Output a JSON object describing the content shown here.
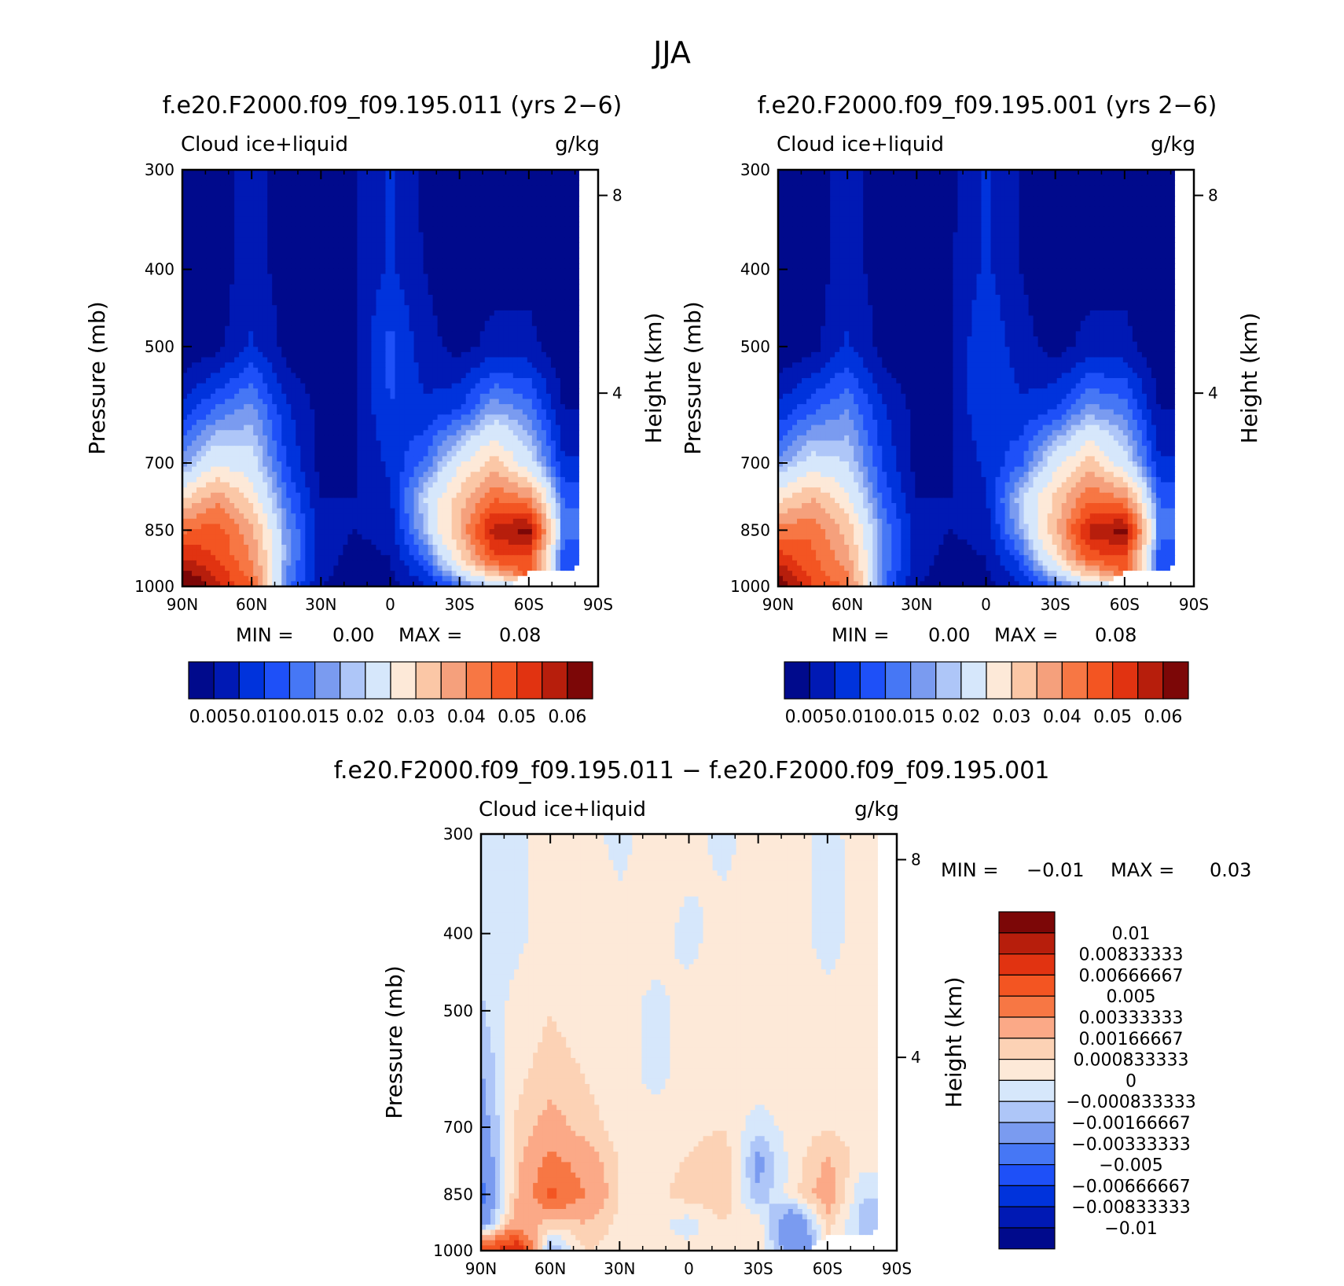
{
  "figure_title": "JJA",
  "colors": {
    "seq": [
      "#000a8c",
      "#0019b4",
      "#0033dc",
      "#1e50f8",
      "#4677f5",
      "#7a9bf0",
      "#aec6f8",
      "#d6e7fb",
      "#fde9d8",
      "#fbc7a6",
      "#f5a07c",
      "#f77744",
      "#f35522",
      "#e13311",
      "#b71e0c",
      "#7c0707"
    ],
    "div": [
      "#7c0707",
      "#b71e0c",
      "#e13311",
      "#f35522",
      "#f77744",
      "#fba987",
      "#fcd2b5",
      "#fde9d8",
      "#d6e7fb",
      "#aec6f8",
      "#7a9bf0",
      "#4677f5",
      "#1e50f8",
      "#0033dc",
      "#0019b4",
      "#000a8c"
    ],
    "missing": "#ffffff"
  },
  "chart_data": [
    {
      "type": "heatmap",
      "id": "panel1",
      "title": "f.e20.F2000.f09_f09.195.011 (yrs 2−6)",
      "left_label": "Cloud ice+liquid",
      "right_label": "g/kg",
      "xlabel": "",
      "ylabel": "Pressure (mb)",
      "y2label": "Height (km)",
      "x_ticks": [
        "90N",
        "60N",
        "30N",
        "0",
        "30S",
        "60S",
        "90S"
      ],
      "y_ticks": [
        "300",
        "400",
        "500",
        "700",
        "850",
        "1000"
      ],
      "y2_ticks": [
        "8",
        "4"
      ],
      "min_label": "MIN =",
      "min_value": "0.00",
      "max_label": "MAX =",
      "max_value": "0.08",
      "colorbar_labels": [
        "0.005",
        "0.010",
        "0.015",
        "0.02",
        "0.03",
        "0.04",
        "0.05",
        "0.06"
      ],
      "field": {
        "latitudes": [
          90,
          75,
          60,
          45,
          30,
          15,
          0,
          -15,
          -30,
          -45,
          -60,
          -75,
          -90
        ],
        "pressures": [
          300,
          400,
          500,
          600,
          700,
          775,
          850,
          925,
          1000
        ],
        "values": [
          [
            0.003,
            0.004,
            0.006,
            0.004,
            0.003,
            0.005,
            0.008,
            0.004,
            0.003,
            0.004,
            0.003,
            0.003,
            null
          ],
          [
            0.003,
            0.004,
            0.006,
            0.004,
            0.003,
            0.005,
            0.008,
            0.005,
            0.003,
            0.004,
            0.004,
            0.003,
            null
          ],
          [
            0.003,
            0.004,
            0.008,
            0.004,
            0.003,
            0.005,
            0.011,
            0.006,
            0.004,
            0.006,
            0.006,
            0.003,
            null
          ],
          [
            0.008,
            0.013,
            0.016,
            0.008,
            0.004,
            0.005,
            0.01,
            0.008,
            0.01,
            0.017,
            0.014,
            0.005,
            null
          ],
          [
            0.016,
            0.024,
            0.022,
            0.01,
            0.004,
            0.005,
            0.008,
            0.013,
            0.024,
            0.032,
            0.022,
            0.008,
            null
          ],
          [
            0.029,
            0.038,
            0.028,
            0.013,
            0.005,
            0.005,
            0.007,
            0.02,
            0.032,
            0.045,
            0.04,
            0.012,
            null
          ],
          [
            0.044,
            0.048,
            0.036,
            0.016,
            0.006,
            0.005,
            0.006,
            0.018,
            0.035,
            0.058,
            0.062,
            0.014,
            null
          ],
          [
            0.056,
            0.05,
            0.04,
            0.016,
            0.006,
            0.004,
            0.005,
            0.012,
            0.028,
            0.048,
            0.048,
            0.01,
            null
          ],
          [
            0.07,
            0.056,
            0.046,
            0.014,
            0.005,
            0.004,
            0.004,
            0.007,
            0.013,
            0.02,
            null,
            null,
            null
          ]
        ]
      }
    },
    {
      "type": "heatmap",
      "id": "panel2",
      "title": "f.e20.F2000.f09_f09.195.001 (yrs 2−6)",
      "left_label": "Cloud ice+liquid",
      "right_label": "g/kg",
      "xlabel": "",
      "ylabel": "Pressure (mb)",
      "y2label": "Height (km)",
      "x_ticks": [
        "90N",
        "60N",
        "30N",
        "0",
        "30S",
        "60S",
        "90S"
      ],
      "y_ticks": [
        "300",
        "400",
        "500",
        "700",
        "850",
        "1000"
      ],
      "y2_ticks": [
        "8",
        "4"
      ],
      "min_label": "MIN =",
      "min_value": "0.00",
      "max_label": "MAX =",
      "max_value": "0.08",
      "colorbar_labels": [
        "0.005",
        "0.010",
        "0.015",
        "0.02",
        "0.03",
        "0.04",
        "0.05",
        "0.06"
      ],
      "field": {
        "latitudes": [
          90,
          75,
          60,
          45,
          30,
          15,
          0,
          -15,
          -30,
          -45,
          -60,
          -75,
          -90
        ],
        "pressures": [
          300,
          400,
          500,
          600,
          700,
          775,
          850,
          925,
          1000
        ],
        "values": [
          [
            0.003,
            0.004,
            0.006,
            0.004,
            0.003,
            0.004,
            0.008,
            0.005,
            0.003,
            0.004,
            0.003,
            0.003,
            null
          ],
          [
            0.003,
            0.004,
            0.006,
            0.004,
            0.003,
            0.005,
            0.008,
            0.005,
            0.003,
            0.004,
            0.004,
            0.003,
            null
          ],
          [
            0.003,
            0.004,
            0.008,
            0.004,
            0.003,
            0.005,
            0.01,
            0.006,
            0.004,
            0.006,
            0.006,
            0.003,
            null
          ],
          [
            0.008,
            0.012,
            0.015,
            0.008,
            0.004,
            0.005,
            0.01,
            0.008,
            0.01,
            0.016,
            0.014,
            0.005,
            null
          ],
          [
            0.016,
            0.022,
            0.02,
            0.01,
            0.004,
            0.005,
            0.008,
            0.012,
            0.023,
            0.032,
            0.022,
            0.008,
            null
          ],
          [
            0.028,
            0.035,
            0.026,
            0.012,
            0.005,
            0.005,
            0.007,
            0.019,
            0.031,
            0.044,
            0.04,
            0.012,
            null
          ],
          [
            0.042,
            0.044,
            0.033,
            0.015,
            0.006,
            0.005,
            0.006,
            0.017,
            0.034,
            0.057,
            0.062,
            0.014,
            null
          ],
          [
            0.054,
            0.046,
            0.037,
            0.015,
            0.006,
            0.004,
            0.005,
            0.011,
            0.027,
            0.047,
            0.048,
            0.01,
            null
          ],
          [
            0.066,
            0.05,
            0.044,
            0.013,
            0.005,
            0.004,
            0.004,
            0.007,
            0.012,
            0.019,
            null,
            null,
            null
          ]
        ]
      }
    },
    {
      "type": "heatmap",
      "id": "panel3",
      "title": "f.e20.F2000.f09_f09.195.011 − f.e20.F2000.f09_f09.195.001",
      "left_label": "Cloud ice+liquid",
      "right_label": "g/kg",
      "xlabel": "",
      "ylabel": "Pressure (mb)",
      "y2label": "Height (km)",
      "x_ticks": [
        "90N",
        "60N",
        "30N",
        "0",
        "30S",
        "60S",
        "90S"
      ],
      "y_ticks": [
        "300",
        "400",
        "500",
        "700",
        "850",
        "1000"
      ],
      "y2_ticks": [
        "8",
        "4"
      ],
      "min_label": "MIN =",
      "min_value": "−0.01",
      "max_label": "MAX =",
      "max_value": "0.03",
      "colorbar_labels": [
        "0.01",
        "0.00833333",
        "0.00666667",
        "0.005",
        "0.00333333",
        "0.00166667",
        "0.000833333",
        "0",
        "−0.000833333",
        "−0.00166667",
        "−0.00333333",
        "−0.005",
        "−0.00666667",
        "−0.00833333",
        "−0.01"
      ],
      "field": {
        "latitudes": [
          90,
          75,
          60,
          45,
          30,
          15,
          0,
          -15,
          -30,
          -45,
          -60,
          -75,
          -90
        ],
        "pressures": [
          300,
          400,
          500,
          600,
          700,
          775,
          850,
          925,
          1000
        ],
        "values": [
          [
            -0.0003,
            -0.0003,
            0.0004,
            0.0004,
            -0.0003,
            0.0004,
            0.0004,
            -0.0003,
            0.0004,
            0.0004,
            -0.0003,
            0.0004,
            null
          ],
          [
            -0.0004,
            -0.0003,
            0.0005,
            0.0004,
            0.0004,
            0.0004,
            -0.0003,
            0.0004,
            0.0004,
            0.0004,
            -0.0004,
            0.0004,
            null
          ],
          [
            -0.001,
            0.0004,
            0.0008,
            0.0005,
            0.0004,
            -0.0003,
            0.0004,
            0.0004,
            0.0004,
            0.0005,
            0.0004,
            0.0004,
            null
          ],
          [
            -0.0018,
            0.0006,
            0.0012,
            0.0008,
            0.0004,
            -0.0003,
            0.0004,
            0.0005,
            0.0005,
            0.0006,
            0.0004,
            0.0004,
            null
          ],
          [
            -0.0025,
            0.0009,
            0.0022,
            0.0012,
            0.0005,
            0.0004,
            0.0005,
            0.0008,
            -0.0005,
            0.0004,
            0.0008,
            0.0004,
            null
          ],
          [
            -0.0032,
            0.0012,
            0.004,
            0.0026,
            0.0007,
            0.0005,
            0.0009,
            0.0017,
            -0.0022,
            0.0004,
            0.0018,
            0.0004,
            null
          ],
          [
            -0.004,
            0.0014,
            0.0055,
            0.0034,
            0.0008,
            0.0005,
            0.0013,
            0.0015,
            -0.0015,
            0.0005,
            0.0025,
            -0.0008,
            null
          ],
          [
            -0.003,
            0.0025,
            0.0012,
            0.0016,
            0.0006,
            0.0004,
            -0.0005,
            0.0008,
            0.0005,
            -0.0035,
            0.0012,
            -0.0012,
            null
          ],
          [
            0.006,
            0.009,
            -0.002,
            0.0009,
            0.0005,
            0.0004,
            0.0004,
            0.0005,
            0.0005,
            -0.0025,
            null,
            null,
            null
          ]
        ]
      }
    }
  ]
}
